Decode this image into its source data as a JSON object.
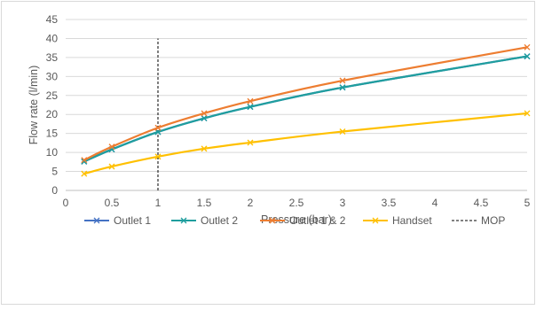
{
  "chart_data": {
    "type": "line",
    "title": "",
    "xlabel": "Pressure (bar)",
    "ylabel": "Flow rate (l/min)",
    "xlim": [
      0,
      5
    ],
    "ylim": [
      0,
      45
    ],
    "xticks": [
      0,
      0.5,
      1,
      1.5,
      2,
      2.5,
      3,
      3.5,
      4,
      4.5,
      5
    ],
    "yticks": [
      0,
      5,
      10,
      15,
      20,
      25,
      30,
      35,
      40,
      45
    ],
    "grid": "horizontal",
    "legend_position": "bottom",
    "series": [
      {
        "name": "Outlet 1",
        "color": "#4472c4",
        "marker": "x",
        "x": [
          0.2,
          0.5,
          1,
          1.5,
          2,
          3,
          5
        ],
        "y": [
          7.6,
          10.8,
          15.4,
          19.0,
          22.0,
          27.1,
          35.3
        ]
      },
      {
        "name": "Outlet 2",
        "color": "#1f9e9e",
        "marker": "x",
        "x": [
          0.2,
          0.5,
          1,
          1.5,
          2,
          3,
          5
        ],
        "y": [
          7.6,
          10.8,
          15.4,
          19.0,
          22.0,
          27.1,
          35.3
        ]
      },
      {
        "name": "Outlet 1 & 2",
        "color": "#ed7d31",
        "marker": "x",
        "x": [
          0.2,
          0.5,
          1,
          1.5,
          2,
          3,
          5
        ],
        "y": [
          8.0,
          11.5,
          16.5,
          20.3,
          23.5,
          28.9,
          37.7
        ]
      },
      {
        "name": "Handset",
        "color": "#ffc000",
        "marker": "x",
        "x": [
          0.2,
          0.5,
          1,
          1.5,
          2,
          3,
          5
        ],
        "y": [
          4.4,
          6.3,
          8.9,
          11.0,
          12.6,
          15.5,
          20.3
        ]
      }
    ],
    "reference_lines": [
      {
        "name": "MOP",
        "color": "#000000",
        "style": "dashed",
        "x": 1,
        "y_range": [
          0,
          40
        ]
      }
    ]
  }
}
